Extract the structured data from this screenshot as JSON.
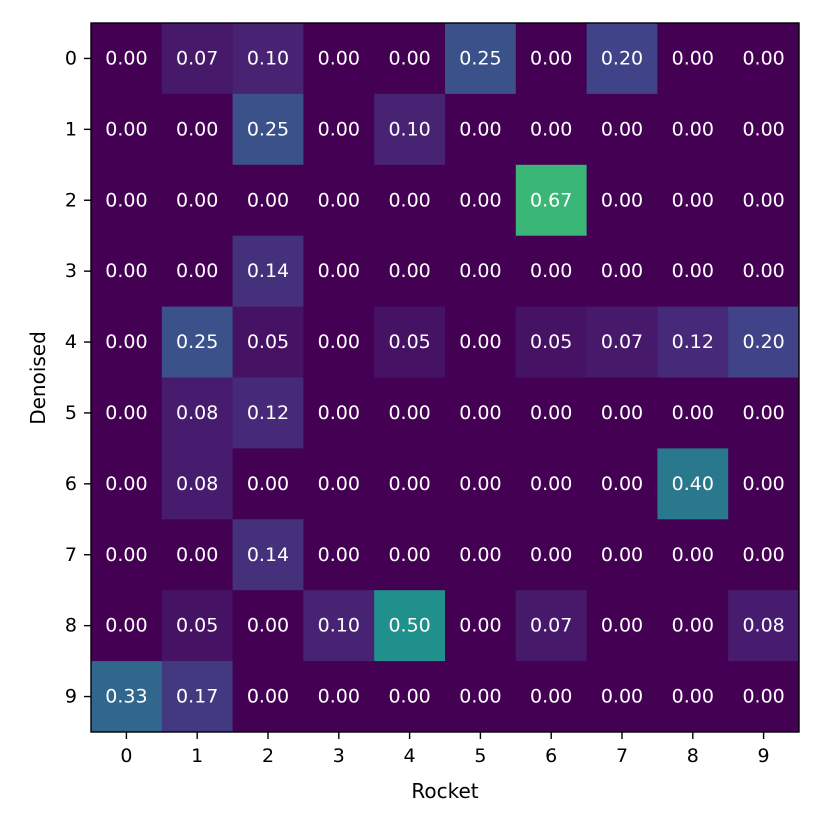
{
  "chart_data": {
    "type": "heatmap",
    "title": "",
    "xlabel": "Rocket",
    "ylabel": "Denoised",
    "x_categories": [
      "0",
      "1",
      "2",
      "3",
      "4",
      "5",
      "6",
      "7",
      "8",
      "9"
    ],
    "y_categories": [
      "0",
      "1",
      "2",
      "3",
      "4",
      "5",
      "6",
      "7",
      "8",
      "9"
    ],
    "value_format": "0.00",
    "colormap": "viridis",
    "color_range": [
      0,
      1
    ],
    "grid": false,
    "values": [
      [
        0.0,
        0.07,
        0.1,
        0.0,
        0.0,
        0.25,
        0.0,
        0.2,
        0.0,
        0.0
      ],
      [
        0.0,
        0.0,
        0.25,
        0.0,
        0.1,
        0.0,
        0.0,
        0.0,
        0.0,
        0.0
      ],
      [
        0.0,
        0.0,
        0.0,
        0.0,
        0.0,
        0.0,
        0.67,
        0.0,
        0.0,
        0.0
      ],
      [
        0.0,
        0.0,
        0.14,
        0.0,
        0.0,
        0.0,
        0.0,
        0.0,
        0.0,
        0.0
      ],
      [
        0.0,
        0.25,
        0.05,
        0.0,
        0.05,
        0.0,
        0.05,
        0.07,
        0.12,
        0.2
      ],
      [
        0.0,
        0.08,
        0.12,
        0.0,
        0.0,
        0.0,
        0.0,
        0.0,
        0.0,
        0.0
      ],
      [
        0.0,
        0.08,
        0.0,
        0.0,
        0.0,
        0.0,
        0.0,
        0.0,
        0.4,
        0.0
      ],
      [
        0.0,
        0.0,
        0.14,
        0.0,
        0.0,
        0.0,
        0.0,
        0.0,
        0.0,
        0.0
      ],
      [
        0.0,
        0.05,
        0.0,
        0.1,
        0.5,
        0.0,
        0.07,
        0.0,
        0.0,
        0.08
      ],
      [
        0.33,
        0.17,
        0.0,
        0.0,
        0.0,
        0.0,
        0.0,
        0.0,
        0.0,
        0.0
      ]
    ]
  }
}
